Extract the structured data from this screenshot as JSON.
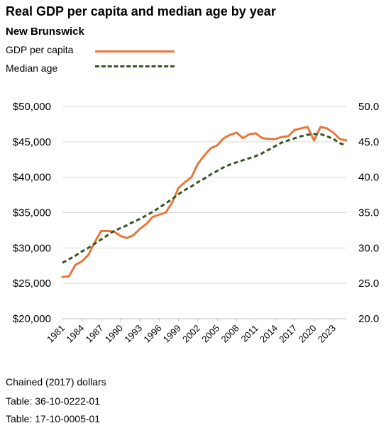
{
  "chart_data": {
    "type": "line",
    "title": "Real GDP per capita and median age by year",
    "subtitle": "New Brunswick",
    "legend_placement": "top-left",
    "grid": true,
    "x": [
      1981,
      1982,
      1983,
      1984,
      1985,
      1986,
      1987,
      1988,
      1989,
      1990,
      1991,
      1992,
      1993,
      1994,
      1995,
      1996,
      1997,
      1998,
      1999,
      2000,
      2001,
      2002,
      2003,
      2004,
      2005,
      2006,
      2007,
      2008,
      2009,
      2010,
      2011,
      2012,
      2013,
      2014,
      2015,
      2016,
      2017,
      2018,
      2019,
      2020,
      2021,
      2022,
      2023,
      2024,
      2025
    ],
    "x_tick_labels": [
      "1981",
      "1984",
      "1987",
      "1990",
      "1993",
      "1996",
      "1999",
      "2002",
      "2005",
      "2008",
      "2011",
      "2014",
      "2017",
      "2020",
      "2023"
    ],
    "y_left": {
      "ylim": [
        20000,
        50000
      ],
      "tick_labels": [
        "$20,000",
        "$25,000",
        "$30,000",
        "$35,000",
        "$40,000",
        "$45,000",
        "$50,000"
      ]
    },
    "y_right": {
      "ylim": [
        20,
        50
      ],
      "tick_labels": [
        "20.0",
        "25.0",
        "30.0",
        "35.0",
        "40.0",
        "45.0",
        "50.0"
      ]
    },
    "series": [
      {
        "name": "GDP per capita",
        "axis": "left",
        "color": "#E8773A",
        "style": "solid",
        "values": [
          25900,
          26000,
          27600,
          28100,
          29000,
          30800,
          32400,
          32400,
          32300,
          31700,
          31400,
          31800,
          32700,
          33400,
          34400,
          34700,
          35000,
          36400,
          38500,
          39300,
          40000,
          41900,
          43100,
          44100,
          44500,
          45500,
          46000,
          46300,
          45500,
          46100,
          46200,
          45500,
          45400,
          45400,
          45700,
          45800,
          46700,
          46900,
          47100,
          45200,
          47100,
          46900,
          46300,
          45400,
          45200
        ]
      },
      {
        "name": "Median age",
        "axis": "right",
        "color": "#375623",
        "style": "dashed",
        "values": [
          27.9,
          28.4,
          28.9,
          29.5,
          30.0,
          30.6,
          31.2,
          31.8,
          32.4,
          32.8,
          33.2,
          33.7,
          34.1,
          34.6,
          35.1,
          35.7,
          36.3,
          36.9,
          37.6,
          38.2,
          38.7,
          39.3,
          39.8,
          40.4,
          40.9,
          41.4,
          41.8,
          42.1,
          42.4,
          42.7,
          43.0,
          43.4,
          43.9,
          44.4,
          44.9,
          45.2,
          45.5,
          45.8,
          46.0,
          46.1,
          46.1,
          45.8,
          45.4,
          44.8,
          44.5
        ]
      }
    ]
  },
  "notes": [
    "Chained (2017) dollars",
    "Table: 36-10-0222-01",
    "Table: 17-10-0005-01"
  ]
}
